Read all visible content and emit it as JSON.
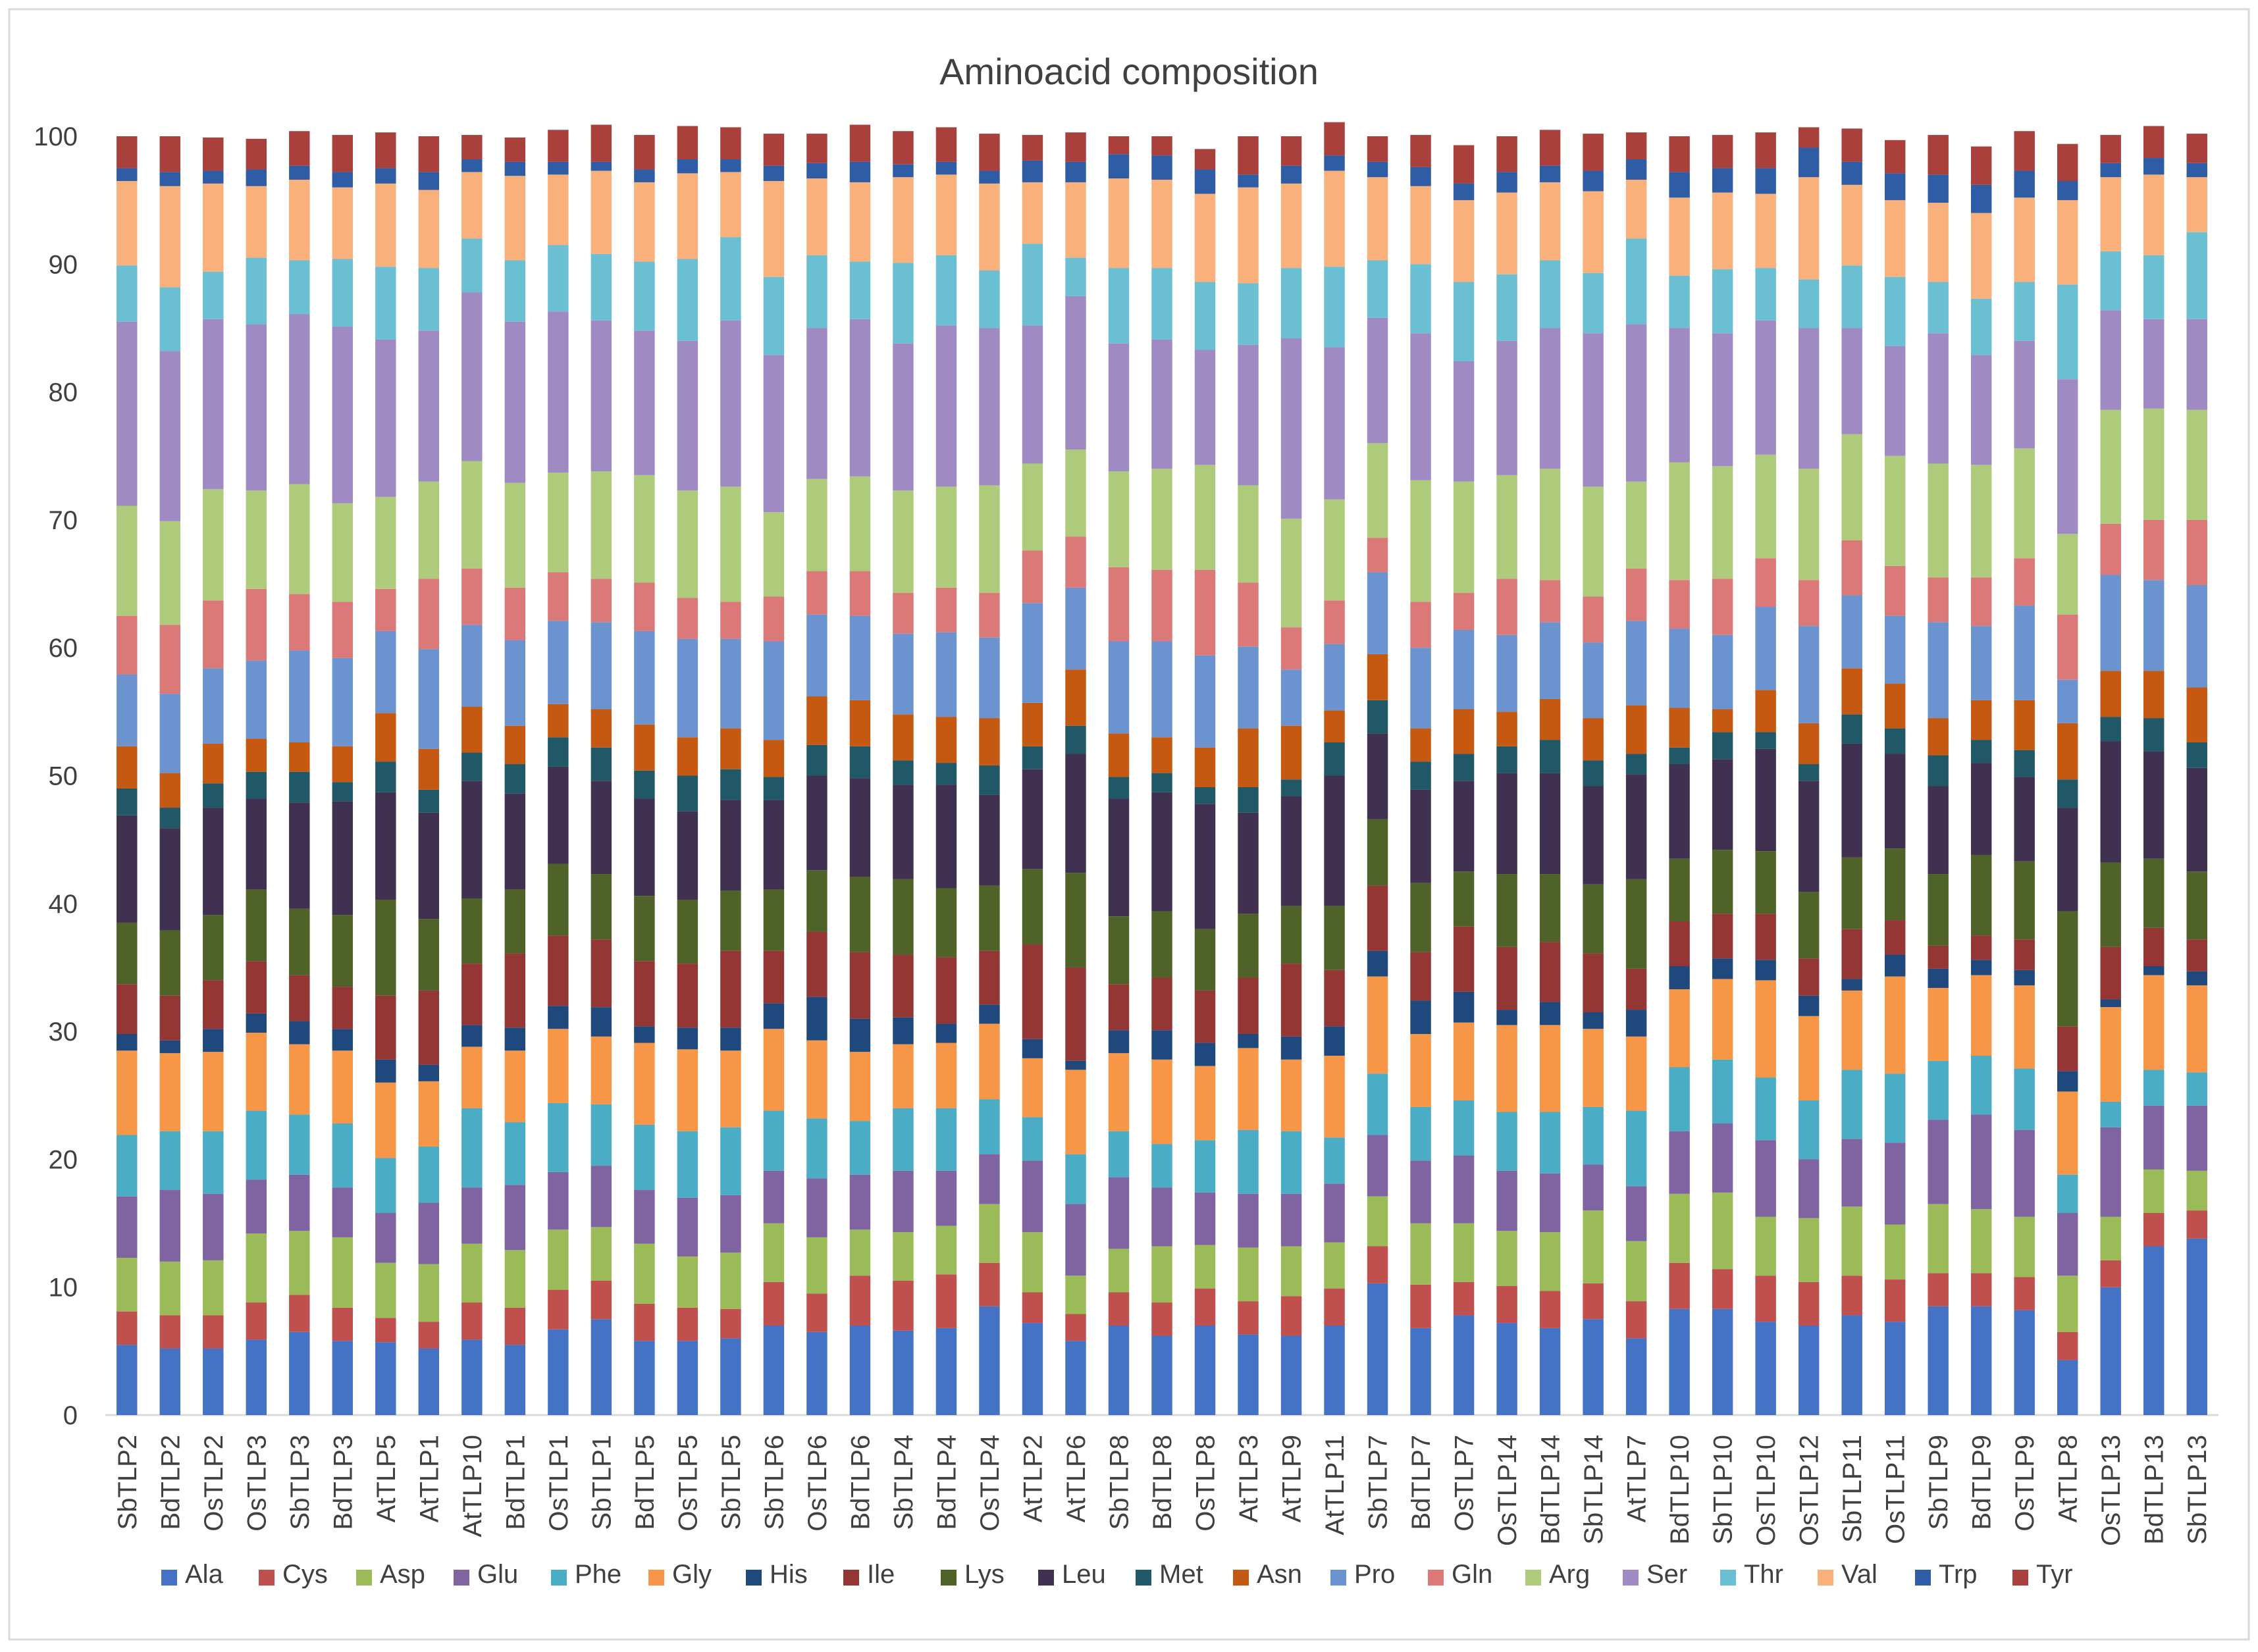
{
  "chart_data": {
    "type": "bar",
    "stacked": true,
    "title": "Aminoacid composition",
    "xlabel": "",
    "ylabel": "",
    "ylim": [
      0,
      100
    ],
    "yticks": [
      0,
      10,
      20,
      30,
      40,
      50,
      60,
      70,
      80,
      90,
      100
    ],
    "grid": false,
    "legend_position": "bottom",
    "categories": [
      "SbTLP2",
      "BdTLP2",
      "OsTLP2",
      "OsTLP3",
      "SbTLP3",
      "BdTLP3",
      "AtTLP5",
      "AtTLP1",
      "AtTLP10",
      "BdTLP1",
      "OsTLP1",
      "SbTLP1",
      "BdTLP5",
      "OsTLP5",
      "SbTLP5",
      "SbTLP6",
      "OsTLP6",
      "BdTLP6",
      "SbTLP4",
      "BdTLP4",
      "OsTLP4",
      "AtTLP2",
      "AtTLP6",
      "SbTLP8",
      "BdTLP8",
      "OsTLP8",
      "AtTLP3",
      "AtTLP9",
      "AtTLP11",
      "SbTLP7",
      "BdTLP7",
      "OsTLP7",
      "OsTLP14",
      "BdTLP14",
      "SbTLP14",
      "AtTLP7",
      "BdTLP10",
      "SbTLP10",
      "OsTLP10",
      "OsTLP12",
      "SbTLP11",
      "OsTLP11",
      "SbTLP9",
      "BdTLP9",
      "OsTLP9",
      "AtTLP8",
      "OsTLP13",
      "BdTLP13",
      "SbTLP13"
    ],
    "series": [
      {
        "name": "Ala",
        "color": "#4472C4",
        "values": [
          5.5,
          5.2,
          5.2,
          5.9,
          6.5,
          5.8,
          5.7,
          5.2,
          5.9,
          5.5,
          6.7,
          7.5,
          5.8,
          5.8,
          6.0,
          7.0,
          6.5,
          7.0,
          6.6,
          6.8,
          8.5,
          7.2,
          5.8,
          7.0,
          6.2,
          7.0,
          6.3,
          6.2,
          7.0,
          10.3,
          6.8,
          7.8,
          7.2,
          6.8,
          7.5,
          6.0,
          8.3,
          8.3,
          7.3,
          7.0,
          7.8,
          7.3,
          8.5,
          8.5,
          8.2,
          4.3,
          10.0,
          13.2,
          13.8
        ]
      },
      {
        "name": "Cys",
        "color": "#C0504D",
        "values": [
          2.6,
          2.6,
          2.6,
          2.9,
          2.9,
          2.6,
          1.9,
          2.1,
          2.9,
          2.9,
          3.1,
          3.0,
          2.9,
          2.6,
          2.3,
          3.4,
          3.0,
          3.9,
          3.9,
          4.2,
          3.4,
          2.4,
          2.1,
          2.6,
          2.6,
          2.9,
          2.6,
          3.1,
          2.9,
          2.9,
          3.4,
          2.6,
          2.9,
          2.9,
          2.8,
          2.9,
          3.6,
          3.1,
          3.6,
          3.4,
          3.1,
          3.3,
          2.6,
          2.6,
          2.6,
          2.2,
          2.1,
          2.6,
          2.2
        ]
      },
      {
        "name": "Asp",
        "color": "#9BBB59",
        "values": [
          4.2,
          4.2,
          4.3,
          5.4,
          5.0,
          5.5,
          4.3,
          4.5,
          4.6,
          4.5,
          4.7,
          4.2,
          4.7,
          4.0,
          4.4,
          4.6,
          4.4,
          3.6,
          3.8,
          3.8,
          4.6,
          4.7,
          3.0,
          3.4,
          4.4,
          3.4,
          4.2,
          3.9,
          3.6,
          3.9,
          4.8,
          4.6,
          4.3,
          4.6,
          5.7,
          4.7,
          5.4,
          6.0,
          4.6,
          5.0,
          5.4,
          4.3,
          5.4,
          5.0,
          4.7,
          4.4,
          3.4,
          3.4,
          3.1
        ]
      },
      {
        "name": "Glu",
        "color": "#8064A2",
        "values": [
          4.8,
          5.6,
          5.2,
          4.2,
          4.4,
          3.9,
          3.9,
          4.8,
          4.4,
          5.1,
          4.5,
          4.8,
          4.2,
          4.6,
          4.5,
          4.1,
          4.6,
          4.3,
          4.8,
          4.3,
          3.9,
          5.6,
          5.6,
          5.6,
          4.6,
          4.1,
          4.2,
          4.1,
          4.6,
          4.8,
          4.9,
          5.3,
          4.7,
          4.6,
          3.6,
          4.3,
          4.9,
          5.4,
          6.0,
          4.6,
          5.3,
          6.4,
          6.6,
          7.4,
          6.8,
          4.9,
          7.0,
          5.0,
          5.1
        ]
      },
      {
        "name": "Phe",
        "color": "#4BACC6",
        "values": [
          4.8,
          4.6,
          4.9,
          5.4,
          4.7,
          5.0,
          4.3,
          4.4,
          6.2,
          4.9,
          5.4,
          4.8,
          5.1,
          5.2,
          5.3,
          4.7,
          4.7,
          4.2,
          4.9,
          4.9,
          4.3,
          3.4,
          3.9,
          3.6,
          3.4,
          4.1,
          5.0,
          4.9,
          3.6,
          4.8,
          4.2,
          4.3,
          4.6,
          4.8,
          4.5,
          5.9,
          5.0,
          5.0,
          4.9,
          4.6,
          5.4,
          5.4,
          4.6,
          4.6,
          4.8,
          3.0,
          2.0,
          2.8,
          2.6
        ]
      },
      {
        "name": "Gly",
        "color": "#F79646",
        "values": [
          6.6,
          6.1,
          6.2,
          6.1,
          5.5,
          5.7,
          5.9,
          5.1,
          4.8,
          5.6,
          5.8,
          5.3,
          6.4,
          6.4,
          6.0,
          6.4,
          6.1,
          5.4,
          5.0,
          5.1,
          5.9,
          4.6,
          6.6,
          6.1,
          6.6,
          5.8,
          6.4,
          5.6,
          6.4,
          7.6,
          5.7,
          6.1,
          6.8,
          6.8,
          6.1,
          5.8,
          6.1,
          6.3,
          7.6,
          6.6,
          6.2,
          7.6,
          5.7,
          6.3,
          6.5,
          6.5,
          7.4,
          7.4,
          6.8
        ]
      },
      {
        "name": "His",
        "color": "#1F497D",
        "values": [
          1.3,
          1.0,
          1.8,
          1.5,
          1.8,
          1.7,
          1.8,
          1.3,
          1.7,
          1.8,
          1.8,
          2.3,
          1.3,
          1.7,
          1.8,
          2.0,
          3.4,
          2.6,
          2.1,
          1.5,
          1.5,
          1.5,
          0.7,
          1.8,
          2.3,
          1.8,
          1.1,
          1.8,
          2.3,
          2.0,
          2.6,
          2.4,
          1.2,
          1.8,
          1.3,
          2.1,
          1.8,
          1.6,
          1.6,
          1.6,
          0.9,
          1.7,
          1.5,
          1.2,
          1.2,
          1.6,
          0.6,
          0.7,
          1.1
        ]
      },
      {
        "name": "Ile",
        "color": "#943634",
        "values": [
          3.9,
          3.5,
          3.8,
          4.1,
          3.6,
          3.3,
          5.0,
          5.8,
          4.8,
          5.8,
          5.5,
          5.3,
          5.1,
          5.0,
          6.0,
          4.1,
          5.1,
          5.2,
          4.9,
          5.2,
          4.2,
          7.4,
          7.3,
          3.6,
          4.1,
          4.1,
          4.4,
          5.7,
          4.4,
          5.1,
          3.8,
          5.1,
          4.9,
          4.7,
          4.6,
          3.2,
          3.5,
          3.5,
          3.6,
          2.9,
          3.9,
          2.7,
          1.8,
          1.9,
          2.4,
          3.5,
          4.1,
          3.0,
          2.5
        ]
      },
      {
        "name": "Lys",
        "color": "#4F6228",
        "values": [
          4.8,
          5.1,
          5.1,
          5.6,
          5.2,
          5.6,
          7.5,
          5.6,
          5.1,
          5.0,
          5.6,
          5.1,
          5.1,
          5.0,
          4.7,
          4.8,
          4.8,
          5.9,
          5.9,
          5.4,
          5.1,
          5.9,
          7.4,
          5.3,
          5.2,
          4.8,
          5.0,
          4.5,
          5.0,
          5.2,
          5.4,
          4.3,
          5.7,
          5.3,
          5.4,
          7.0,
          4.9,
          5.0,
          4.9,
          5.2,
          5.6,
          5.6,
          5.6,
          6.3,
          6.1,
          9.0,
          6.6,
          5.4,
          5.3
        ]
      },
      {
        "name": "Leu",
        "color": "#403151",
        "values": [
          8.4,
          8.0,
          8.4,
          7.1,
          8.3,
          8.9,
          8.4,
          8.3,
          9.2,
          7.5,
          7.6,
          7.3,
          7.6,
          6.9,
          7.1,
          7.0,
          7.4,
          7.7,
          7.4,
          8.1,
          7.1,
          7.8,
          9.3,
          9.2,
          9.3,
          9.8,
          7.9,
          8.6,
          10.2,
          6.7,
          7.3,
          7.1,
          7.9,
          7.9,
          7.7,
          8.2,
          7.4,
          7.1,
          8.0,
          8.7,
          8.9,
          7.4,
          6.9,
          7.2,
          6.6,
          8.1,
          9.5,
          8.4,
          8.1
        ]
      },
      {
        "name": "Met",
        "color": "#215868",
        "values": [
          2.1,
          1.6,
          1.9,
          2.1,
          2.4,
          1.5,
          2.4,
          1.8,
          2.2,
          2.3,
          2.3,
          2.6,
          2.2,
          2.8,
          2.4,
          1.8,
          2.4,
          2.5,
          1.9,
          1.7,
          2.3,
          1.8,
          2.2,
          1.7,
          1.5,
          1.3,
          2.0,
          1.3,
          2.6,
          2.6,
          2.2,
          2.1,
          2.1,
          2.6,
          2.0,
          1.6,
          1.3,
          2.1,
          1.3,
          1.3,
          2.3,
          2.0,
          2.4,
          1.8,
          2.1,
          2.2,
          1.9,
          2.6,
          2.0
        ]
      },
      {
        "name": "Asn",
        "color": "#C65911",
        "values": [
          3.3,
          2.7,
          3.1,
          2.6,
          2.3,
          2.8,
          3.8,
          3.2,
          3.6,
          3.0,
          2.6,
          3.0,
          3.6,
          3.0,
          3.2,
          2.9,
          3.8,
          3.6,
          3.6,
          3.6,
          3.7,
          3.4,
          4.4,
          3.4,
          2.8,
          3.1,
          4.6,
          4.2,
          2.5,
          3.6,
          2.6,
          3.5,
          2.7,
          3.2,
          3.3,
          3.8,
          3.1,
          1.8,
          3.3,
          3.2,
          3.6,
          3.5,
          2.9,
          3.1,
          3.9,
          4.4,
          3.6,
          3.7,
          4.3
        ]
      },
      {
        "name": "Pro",
        "color": "#6A93D0",
        "values": [
          5.6,
          6.2,
          5.9,
          6.1,
          7.2,
          6.9,
          6.4,
          7.8,
          6.4,
          6.7,
          6.5,
          6.8,
          7.3,
          7.7,
          7.0,
          7.7,
          6.4,
          6.6,
          6.3,
          6.6,
          6.3,
          7.8,
          6.4,
          7.2,
          7.5,
          7.2,
          6.4,
          4.4,
          5.2,
          6.4,
          6.3,
          6.2,
          6.0,
          6.0,
          5.9,
          6.6,
          6.2,
          5.8,
          6.5,
          7.6,
          5.7,
          5.3,
          7.5,
          5.8,
          7.4,
          3.4,
          7.5,
          7.1,
          8.0
        ]
      },
      {
        "name": "Gln",
        "color": "#DA7978",
        "values": [
          4.6,
          5.4,
          5.3,
          5.6,
          4.4,
          4.4,
          3.3,
          5.5,
          4.4,
          4.1,
          3.8,
          3.4,
          3.8,
          3.2,
          2.9,
          3.5,
          3.4,
          3.5,
          3.2,
          3.5,
          3.5,
          4.1,
          4.0,
          5.8,
          5.6,
          6.7,
          5.0,
          3.3,
          3.4,
          2.7,
          3.6,
          2.9,
          4.4,
          3.3,
          3.6,
          4.1,
          3.8,
          4.4,
          3.8,
          3.6,
          4.3,
          3.9,
          3.5,
          3.8,
          3.7,
          5.1,
          4.0,
          4.7,
          5.1
        ]
      },
      {
        "name": "Arg",
        "color": "#AECB7C",
        "values": [
          8.6,
          8.1,
          8.7,
          7.7,
          8.6,
          7.7,
          7.2,
          7.6,
          8.4,
          8.2,
          7.8,
          8.4,
          8.4,
          8.4,
          9.0,
          6.6,
          7.2,
          7.4,
          8.0,
          7.9,
          8.4,
          6.8,
          6.8,
          7.5,
          7.9,
          8.2,
          7.6,
          8.5,
          7.9,
          7.4,
          9.5,
          8.7,
          8.1,
          8.7,
          8.6,
          6.8,
          9.2,
          8.8,
          8.1,
          8.7,
          8.3,
          8.6,
          8.9,
          8.8,
          8.6,
          6.3,
          8.9,
          8.7,
          8.6
        ]
      },
      {
        "name": "Ser",
        "color": "#A08AC4",
        "values": [
          14.4,
          13.3,
          13.3,
          13.0,
          13.3,
          13.8,
          12.3,
          11.8,
          13.2,
          12.6,
          12.6,
          11.8,
          11.3,
          11.7,
          13.0,
          12.3,
          11.8,
          12.3,
          11.5,
          12.6,
          12.3,
          10.8,
          12.0,
          10.0,
          10.1,
          9.0,
          11.0,
          14.1,
          11.9,
          9.8,
          11.5,
          9.4,
          10.5,
          11.0,
          12.0,
          12.3,
          10.5,
          10.4,
          10.5,
          11.0,
          8.3,
          8.6,
          10.2,
          8.6,
          8.4,
          12.1,
          7.8,
          7.0,
          7.1
        ]
      },
      {
        "name": "Thr",
        "color": "#6BBFD3",
        "values": [
          4.4,
          5.0,
          3.7,
          5.2,
          4.2,
          5.3,
          5.7,
          4.9,
          4.2,
          4.8,
          5.2,
          5.2,
          5.4,
          6.4,
          6.5,
          6.1,
          5.7,
          4.5,
          6.3,
          5.5,
          4.5,
          6.4,
          3.0,
          5.9,
          5.6,
          5.3,
          4.8,
          5.5,
          6.3,
          4.5,
          5.4,
          6.2,
          5.2,
          5.3,
          4.7,
          6.7,
          4.1,
          5.0,
          4.1,
          3.8,
          4.9,
          5.4,
          4.0,
          4.4,
          4.6,
          7.4,
          4.6,
          5.0,
          6.8
        ]
      },
      {
        "name": "Val",
        "color": "#FAB07A",
        "values": [
          6.6,
          7.9,
          6.9,
          5.6,
          6.3,
          5.6,
          6.5,
          6.1,
          5.2,
          6.6,
          5.5,
          6.5,
          6.2,
          6.7,
          5.1,
          7.5,
          6.0,
          6.2,
          6.7,
          6.3,
          6.8,
          4.8,
          5.9,
          7.0,
          6.9,
          6.9,
          7.5,
          6.6,
          7.5,
          6.5,
          6.1,
          6.4,
          6.4,
          6.1,
          6.4,
          4.6,
          6.1,
          6.0,
          5.8,
          8.0,
          6.3,
          6.0,
          6.2,
          6.7,
          6.6,
          6.6,
          5.8,
          6.3,
          4.3
        ]
      },
      {
        "name": "Trp",
        "color": "#2E5DA6",
        "values": [
          1.0,
          1.1,
          1.0,
          1.3,
          1.1,
          1.2,
          1.2,
          1.4,
          1.0,
          1.1,
          1.0,
          0.7,
          1.0,
          1.1,
          1.0,
          1.2,
          1.2,
          1.6,
          1.0,
          1.0,
          1.0,
          1.7,
          1.6,
          1.9,
          1.9,
          1.9,
          1.0,
          1.4,
          1.2,
          1.2,
          1.5,
          1.3,
          1.6,
          1.3,
          1.6,
          1.6,
          2.0,
          1.9,
          2.0,
          2.3,
          1.8,
          2.1,
          2.2,
          2.2,
          2.1,
          1.5,
          1.1,
          1.3,
          1.1
        ]
      },
      {
        "name": "Tyr",
        "color": "#A9403C",
        "values": [
          2.5,
          2.8,
          2.6,
          2.4,
          2.7,
          2.9,
          2.8,
          2.8,
          1.9,
          1.9,
          2.5,
          2.9,
          2.7,
          2.6,
          2.5,
          2.5,
          2.3,
          2.9,
          2.6,
          2.7,
          2.9,
          2.0,
          2.3,
          1.4,
          1.5,
          1.6,
          3.0,
          2.3,
          2.6,
          2.0,
          2.5,
          3.0,
          2.8,
          2.8,
          2.9,
          2.1,
          2.8,
          2.6,
          2.8,
          1.6,
          2.6,
          2.6,
          3.1,
          3.0,
          3.1,
          2.9,
          2.2,
          2.5,
          2.3
        ]
      }
    ]
  }
}
